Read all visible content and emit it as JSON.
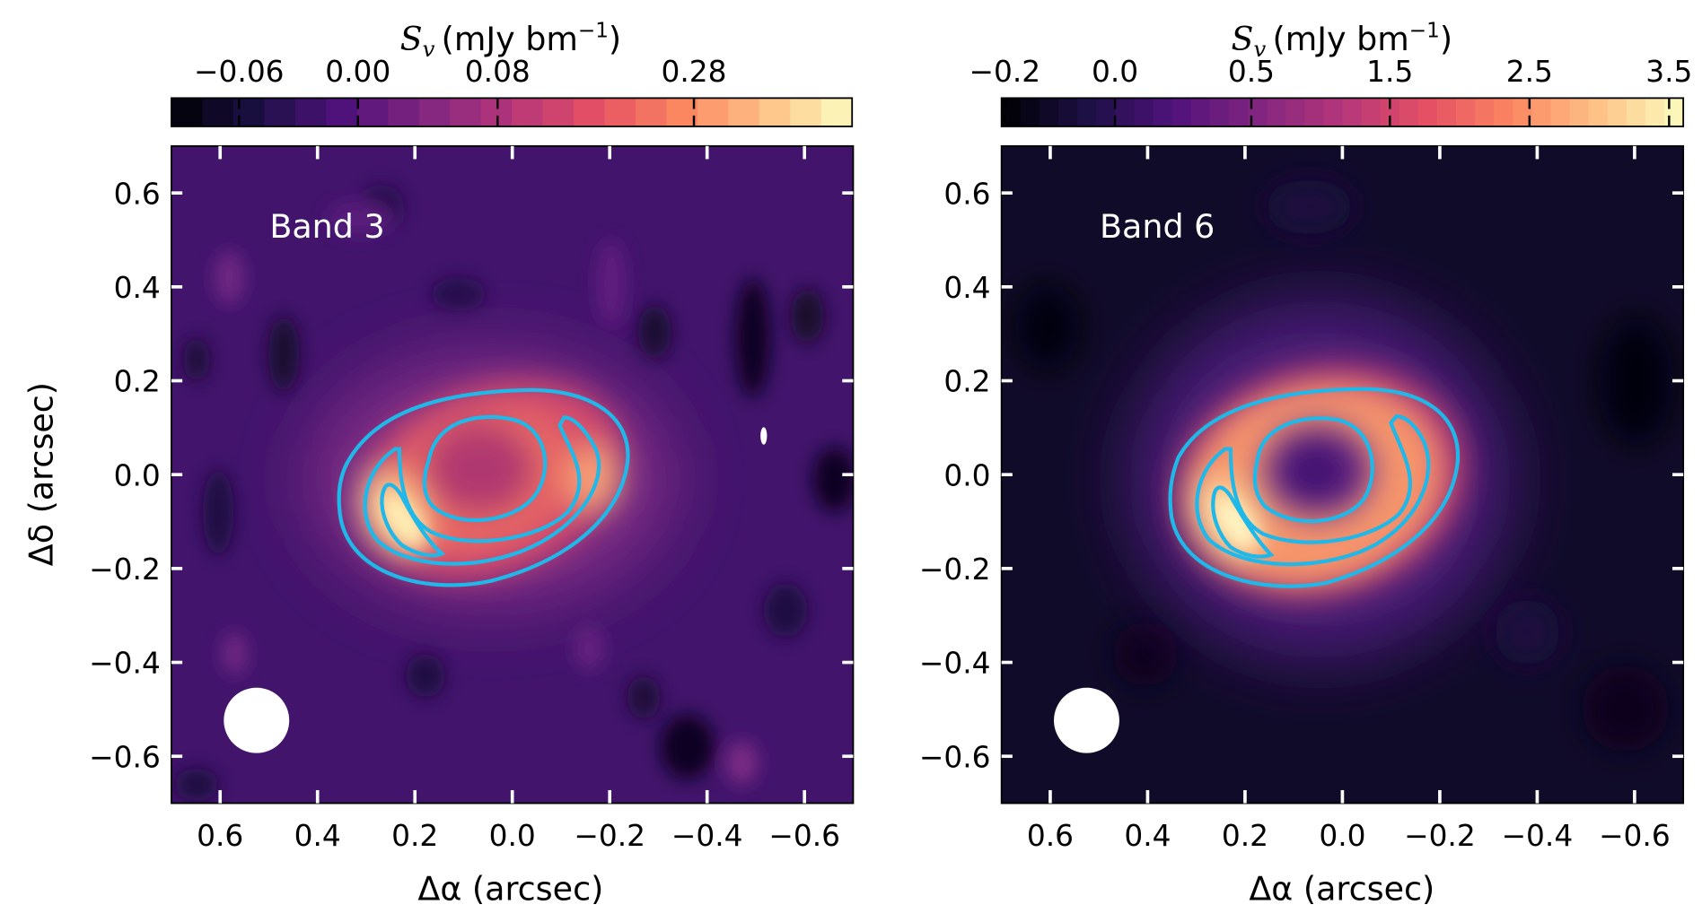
{
  "chart_data": [
    {
      "type": "heatmap",
      "panel_label": "Band 3",
      "colormap": "magma",
      "colorbar": {
        "label_symbol": "S",
        "label_subscript": "v",
        "label_unit": "(mJy bm",
        "label_exp": "−1",
        "label_close": ")",
        "ticks": [
          "−0.06",
          "0.00",
          "0.08",
          "0.28"
        ],
        "tick_values": [
          -0.06,
          0.0,
          0.08,
          0.28
        ],
        "range": [
          -0.1,
          0.4
        ]
      },
      "xlabel": "Δα (arcsec)",
      "ylabel": "Δδ (arcsec)",
      "xticks": [
        "0.6",
        "0.4",
        "0.2",
        "0.0",
        "−0.2",
        "−0.4",
        "−0.6"
      ],
      "yticks": [
        "0.6",
        "0.4",
        "0.2",
        "0.0",
        "−0.2",
        "−0.4",
        "−0.6"
      ],
      "xlim": [
        0.7,
        -0.7
      ],
      "ylim": [
        -0.7,
        0.7
      ],
      "contour_color": "#1fb8e8",
      "beam_color": "#ffffff"
    },
    {
      "type": "heatmap",
      "panel_label": "Band 6",
      "colormap": "magma",
      "colorbar": {
        "label_symbol": "S",
        "label_subscript": "v",
        "label_unit": "(mJy bm",
        "label_exp": "−1",
        "label_close": ")",
        "ticks": [
          "−0.2",
          "0.0",
          "0.5",
          "1.5",
          "2.5",
          "3.5"
        ],
        "tick_values": [
          -0.2,
          0.0,
          0.5,
          1.5,
          2.5,
          3.5
        ],
        "range": [
          -0.2,
          3.6
        ]
      },
      "xlabel": "Δα (arcsec)",
      "xticks": [
        "0.6",
        "0.4",
        "0.2",
        "0.0",
        "−0.2",
        "−0.4",
        "−0.6"
      ],
      "yticks": [
        "0.6",
        "0.4",
        "0.2",
        "0.0",
        "−0.2",
        "−0.4",
        "−0.6"
      ],
      "xlim": [
        0.7,
        -0.7
      ],
      "ylim": [
        -0.7,
        0.7
      ],
      "contour_color": "#1fb8e8",
      "beam_color": "#ffffff"
    }
  ]
}
